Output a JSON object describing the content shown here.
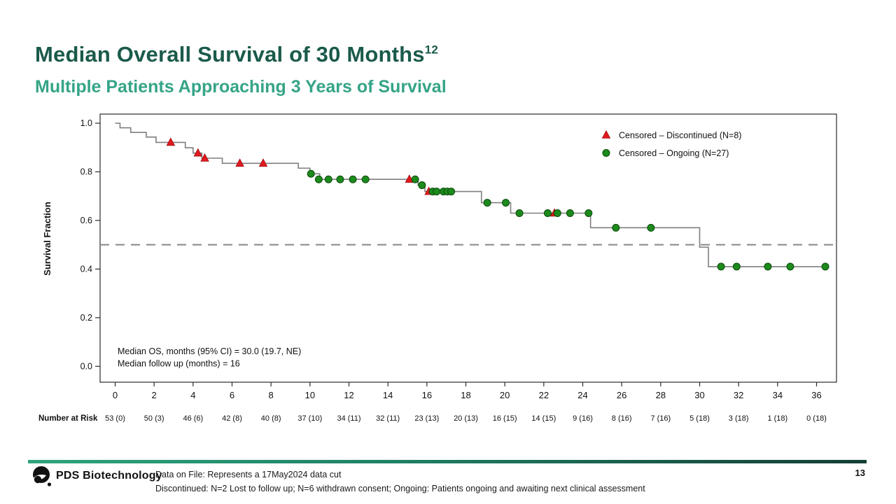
{
  "header": {
    "title": "Median Overall Survival of 30 Months",
    "title_sup": "12",
    "subtitle": "Multiple Patients Approaching 3 Years of Survival"
  },
  "chart_data": {
    "type": "line",
    "subtype": "kaplan_meier_step",
    "title": "",
    "xlabel": "",
    "ylabel": "Survival Fraction",
    "xlim": [
      0,
      36
    ],
    "ylim": [
      0.0,
      1.0
    ],
    "xticks": [
      0,
      2,
      4,
      6,
      8,
      10,
      12,
      14,
      16,
      18,
      20,
      22,
      24,
      26,
      28,
      30,
      32,
      34,
      36
    ],
    "yticks": [
      0.0,
      0.2,
      0.4,
      0.6,
      0.8,
      1.0
    ],
    "grid": false,
    "legend_position": "top-right-inside",
    "median_reference_line_y": 0.5,
    "curve_color": "#7f7f7f",
    "dash_line_color": "#878787",
    "series": [
      {
        "name": "Overall Survival",
        "color": "#7f7f7f",
        "steps": [
          [
            0,
            1.0
          ],
          [
            0.25,
            0.981
          ],
          [
            0.8,
            0.962
          ],
          [
            1.6,
            0.943
          ],
          [
            2.1,
            0.921
          ],
          [
            3.6,
            0.899
          ],
          [
            4.0,
            0.877
          ],
          [
            4.45,
            0.856
          ],
          [
            5.5,
            0.835
          ],
          [
            9.4,
            0.815
          ],
          [
            10.0,
            0.792
          ],
          [
            10.5,
            0.769
          ],
          [
            15.55,
            0.745
          ],
          [
            15.9,
            0.719
          ],
          [
            18.8,
            0.673
          ],
          [
            20.3,
            0.63
          ],
          [
            24.4,
            0.57
          ],
          [
            30.0,
            0.49
          ],
          [
            30.45,
            0.41
          ]
        ],
        "end_x": 36.5
      }
    ],
    "censor_markers": [
      {
        "name": "Censored – Discontinued (N=8)",
        "marker": "triangle",
        "color": "#e11a1f",
        "edge_color": "#9e0d10",
        "points": [
          [
            2.85,
            0.921
          ],
          [
            4.25,
            0.877
          ],
          [
            4.6,
            0.856
          ],
          [
            6.4,
            0.835
          ],
          [
            7.6,
            0.835
          ],
          [
            15.1,
            0.769
          ],
          [
            16.1,
            0.719
          ],
          [
            22.55,
            0.63
          ]
        ]
      },
      {
        "name": "Censored – Ongoing (N=27)",
        "marker": "circle",
        "color": "#1c8a1c",
        "edge_color": "#0a4a0a",
        "points": [
          [
            10.05,
            0.792
          ],
          [
            10.45,
            0.769
          ],
          [
            10.95,
            0.769
          ],
          [
            11.55,
            0.769
          ],
          [
            12.2,
            0.769
          ],
          [
            12.85,
            0.769
          ],
          [
            15.4,
            0.769
          ],
          [
            15.75,
            0.745
          ],
          [
            16.3,
            0.719
          ],
          [
            16.5,
            0.719
          ],
          [
            16.85,
            0.719
          ],
          [
            17.05,
            0.719
          ],
          [
            17.25,
            0.719
          ],
          [
            19.1,
            0.673
          ],
          [
            20.05,
            0.673
          ],
          [
            20.75,
            0.63
          ],
          [
            22.2,
            0.63
          ],
          [
            22.7,
            0.63
          ],
          [
            23.35,
            0.63
          ],
          [
            24.3,
            0.63
          ],
          [
            25.7,
            0.57
          ],
          [
            27.5,
            0.57
          ],
          [
            31.1,
            0.41
          ],
          [
            31.9,
            0.41
          ],
          [
            33.5,
            0.41
          ],
          [
            34.65,
            0.41
          ],
          [
            36.45,
            0.41
          ]
        ]
      }
    ],
    "annotation": [
      "Median OS, months (95% CI) = 30.0 (19.7, NE)",
      "Median follow up (months) = 16"
    ],
    "number_at_risk": {
      "label": "Number at Risk",
      "values": [
        "53 (0)",
        "50 (3)",
        "46 (6)",
        "42 (8)",
        "40 (8)",
        "37 (10)",
        "34 (11)",
        "32 (11)",
        "23 (13)",
        "20 (13)",
        "16 (15)",
        "14 (15)",
        "9 (16)",
        "8 (16)",
        "7 (16)",
        "5 (18)",
        "3 (18)",
        "1 (18)",
        "0 (18)"
      ]
    }
  },
  "footer": {
    "brand": "PDS Biotechnology",
    "line1": "Data on File: Represents a 17May2024 data cut",
    "line2": "Discontinued: N=2 Lost to follow up; N=6 withdrawn consent; Ongoing: Patients ongoing and awaiting next clinical assessment",
    "page": "13"
  }
}
